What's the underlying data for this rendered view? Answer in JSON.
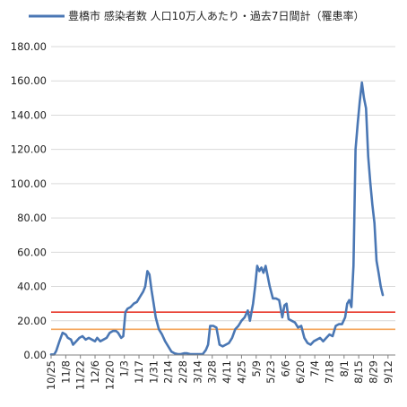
{
  "chart_data": {
    "type": "line",
    "title": "",
    "xlabel": "",
    "ylabel": "",
    "legend": {
      "placement": "top",
      "label": "豊橋市 感染者数 人口10万人あたり・過去7日間計（罹患率）"
    },
    "ylim": [
      0,
      180
    ],
    "ytick_values": [
      0,
      20,
      40,
      60,
      80,
      100,
      120,
      140,
      160,
      180
    ],
    "ytick_labels": [
      "0.00",
      "20.00",
      "40.00",
      "60.00",
      "80.00",
      "100.00",
      "120.00",
      "140.00",
      "160.00",
      "180.00"
    ],
    "x_range": [
      "2020-10-25",
      "2021-09-19"
    ],
    "xtick_dates": [
      "2020-10-25",
      "2020-11-08",
      "2020-11-22",
      "2020-12-06",
      "2020-12-20",
      "2021-01-03",
      "2021-01-17",
      "2021-01-31",
      "2021-02-14",
      "2021-02-28",
      "2021-03-14",
      "2021-03-28",
      "2021-04-11",
      "2021-04-25",
      "2021-05-09",
      "2021-05-23",
      "2021-06-06",
      "2021-06-20",
      "2021-07-04",
      "2021-07-18",
      "2021-08-01",
      "2021-08-15",
      "2021-08-29",
      "2021-09-12"
    ],
    "xtick_labels": [
      "10/25",
      "11/8",
      "11/22",
      "12/6",
      "12/20",
      "1/3",
      "1/17",
      "1/31",
      "2/14",
      "2/28",
      "3/14",
      "3/28",
      "4/11",
      "4/25",
      "5/9",
      "5/23",
      "6/6",
      "6/20",
      "7/4",
      "7/18",
      "8/1",
      "8/15",
      "8/29",
      "9/12"
    ],
    "grid": "horizontal",
    "reference_lines": [
      {
        "value": 25,
        "color": "#e8382b"
      },
      {
        "value": 15,
        "color": "#f4a45a"
      }
    ],
    "series": [
      {
        "name": "豊橋市 感染者数 人口10万人あたり・過去7日間計（罹患率）",
        "color": "#4a77b4",
        "points": [
          [
            "2020-10-25",
            0.3
          ],
          [
            "2020-10-28",
            0.3
          ],
          [
            "2020-10-30",
            2.5
          ],
          [
            "2020-11-02",
            8
          ],
          [
            "2020-11-05",
            13
          ],
          [
            "2020-11-08",
            12
          ],
          [
            "2020-11-10",
            10
          ],
          [
            "2020-11-13",
            9
          ],
          [
            "2020-11-15",
            6
          ],
          [
            "2020-11-18",
            8
          ],
          [
            "2020-11-21",
            10
          ],
          [
            "2020-11-24",
            11
          ],
          [
            "2020-11-27",
            9
          ],
          [
            "2020-11-30",
            10
          ],
          [
            "2020-12-03",
            9
          ],
          [
            "2020-12-06",
            8
          ],
          [
            "2020-12-08",
            10
          ],
          [
            "2020-12-11",
            8
          ],
          [
            "2020-12-14",
            9
          ],
          [
            "2020-12-17",
            10
          ],
          [
            "2020-12-20",
            13
          ],
          [
            "2020-12-23",
            14
          ],
          [
            "2020-12-26",
            14
          ],
          [
            "2020-12-28",
            13
          ],
          [
            "2020-12-31",
            10
          ],
          [
            "2021-01-02",
            11
          ],
          [
            "2021-01-04",
            25
          ],
          [
            "2021-01-06",
            27
          ],
          [
            "2021-01-09",
            28
          ],
          [
            "2021-01-12",
            30
          ],
          [
            "2021-01-15",
            31
          ],
          [
            "2021-01-18",
            34
          ],
          [
            "2021-01-21",
            37
          ],
          [
            "2021-01-23",
            40
          ],
          [
            "2021-01-25",
            49
          ],
          [
            "2021-01-27",
            47
          ],
          [
            "2021-01-29",
            38
          ],
          [
            "2021-01-31",
            30
          ],
          [
            "2021-02-02",
            22
          ],
          [
            "2021-02-05",
            15
          ],
          [
            "2021-02-08",
            12
          ],
          [
            "2021-02-11",
            8
          ],
          [
            "2021-02-14",
            5
          ],
          [
            "2021-02-17",
            2
          ],
          [
            "2021-02-20",
            1
          ],
          [
            "2021-02-23",
            0.5
          ],
          [
            "2021-02-26",
            0.5
          ],
          [
            "2021-03-01",
            1
          ],
          [
            "2021-03-04",
            1
          ],
          [
            "2021-03-07",
            0.5
          ],
          [
            "2021-03-10",
            0.5
          ],
          [
            "2021-03-13",
            0.5
          ],
          [
            "2021-03-16",
            0.5
          ],
          [
            "2021-03-19",
            0.5
          ],
          [
            "2021-03-22",
            3
          ],
          [
            "2021-03-24",
            6
          ],
          [
            "2021-03-26",
            17
          ],
          [
            "2021-03-29",
            17
          ],
          [
            "2021-04-01",
            16
          ],
          [
            "2021-04-04",
            6
          ],
          [
            "2021-04-07",
            5
          ],
          [
            "2021-04-10",
            6
          ],
          [
            "2021-04-13",
            7
          ],
          [
            "2021-04-16",
            10
          ],
          [
            "2021-04-19",
            15
          ],
          [
            "2021-04-22",
            17
          ],
          [
            "2021-04-25",
            20
          ],
          [
            "2021-04-28",
            22
          ],
          [
            "2021-05-01",
            26
          ],
          [
            "2021-05-03",
            20
          ],
          [
            "2021-05-06",
            30
          ],
          [
            "2021-05-08",
            40
          ],
          [
            "2021-05-10",
            52
          ],
          [
            "2021-05-12",
            49
          ],
          [
            "2021-05-14",
            51
          ],
          [
            "2021-05-16",
            48
          ],
          [
            "2021-05-18",
            52
          ],
          [
            "2021-05-20",
            46
          ],
          [
            "2021-05-22",
            40
          ],
          [
            "2021-05-25",
            33
          ],
          [
            "2021-05-28",
            33
          ],
          [
            "2021-05-31",
            32
          ],
          [
            "2021-06-03",
            22
          ],
          [
            "2021-06-05",
            29
          ],
          [
            "2021-06-07",
            30
          ],
          [
            "2021-06-09",
            21
          ],
          [
            "2021-06-12",
            20
          ],
          [
            "2021-06-15",
            19
          ],
          [
            "2021-06-18",
            16
          ],
          [
            "2021-06-21",
            17
          ],
          [
            "2021-06-24",
            10
          ],
          [
            "2021-06-27",
            7
          ],
          [
            "2021-06-30",
            6
          ],
          [
            "2021-07-03",
            8
          ],
          [
            "2021-07-06",
            9
          ],
          [
            "2021-07-09",
            10
          ],
          [
            "2021-07-12",
            8
          ],
          [
            "2021-07-15",
            10
          ],
          [
            "2021-07-18",
            12
          ],
          [
            "2021-07-21",
            11
          ],
          [
            "2021-07-24",
            17
          ],
          [
            "2021-07-27",
            18
          ],
          [
            "2021-07-30",
            18
          ],
          [
            "2021-08-02",
            22
          ],
          [
            "2021-08-04",
            30
          ],
          [
            "2021-08-06",
            32
          ],
          [
            "2021-08-08",
            28
          ],
          [
            "2021-08-10",
            52
          ],
          [
            "2021-08-12",
            120
          ],
          [
            "2021-08-14",
            135
          ],
          [
            "2021-08-16",
            148
          ],
          [
            "2021-08-18",
            159
          ],
          [
            "2021-08-20",
            150
          ],
          [
            "2021-08-22",
            144
          ],
          [
            "2021-08-24",
            116
          ],
          [
            "2021-08-26",
            101
          ],
          [
            "2021-08-28",
            88
          ],
          [
            "2021-08-30",
            77
          ],
          [
            "2021-09-01",
            55
          ],
          [
            "2021-09-03",
            48
          ],
          [
            "2021-09-05",
            40
          ],
          [
            "2021-09-07",
            35
          ]
        ]
      }
    ]
  }
}
